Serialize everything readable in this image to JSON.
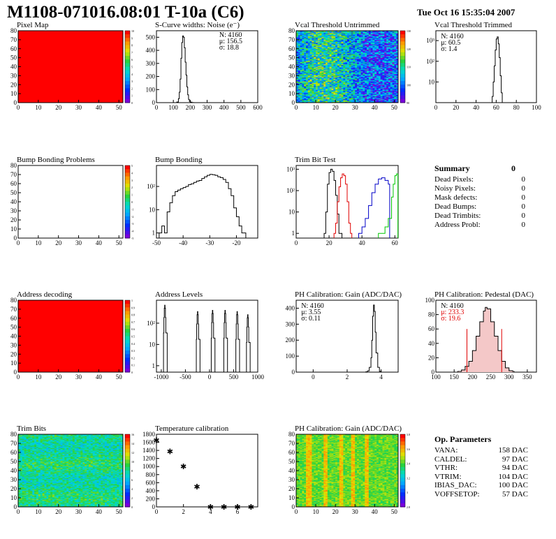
{
  "header": {
    "title": "M1108-071016.08:01 T-10a (C6)",
    "date": "Tue Oct 16 15:35:04 2007"
  },
  "colors": {
    "red_map": "#ff0000",
    "line": "#000000",
    "trim_red": "#e00000",
    "trim_blue": "#0000c8",
    "trim_green": "#00c800",
    "pedestal_fit": "#e00000"
  },
  "panels": {
    "pixel_map": {
      "title": "Pixel Map",
      "zticks": [
        "10",
        "9",
        "8",
        "7",
        "6",
        "5",
        "4",
        "3",
        "2",
        "1",
        "0"
      ]
    },
    "scurve": {
      "title": "S-Curve widths: Noise (e⁻)",
      "stats": [
        "N: 4160",
        "μ: 156.5",
        "σ: 18.8"
      ]
    },
    "vcal_untrimmed": {
      "title": "Vcal Threshold Untrimmed",
      "zticks": [
        "130",
        "120",
        "110",
        "100",
        "90"
      ]
    },
    "vcal_trimmed": {
      "title": "Vcal Threshold Trimmed",
      "stats": [
        "N: 4160",
        "μ: 60.5",
        "σ:  1.4"
      ]
    },
    "bump_problems": {
      "title": "Bump Bonding Problems",
      "zticks": [
        "5",
        "4",
        "3",
        "2",
        "1",
        "0",
        "-1",
        "-2",
        "-3",
        "-4",
        "-5"
      ]
    },
    "bump_bonding": {
      "title": "Bump Bonding"
    },
    "trim_bit_test": {
      "title": "Trim Bit Test"
    },
    "address_decoding": {
      "title": "Address decoding",
      "zticks": [
        "1",
        "0.9",
        "0.8",
        "0.7",
        "0.6",
        "0.5",
        "0.4",
        "0.3",
        "0.2",
        "0.1",
        "0"
      ]
    },
    "address_levels": {
      "title": "Address Levels"
    },
    "ph_gain": {
      "title": "PH Calibration: Gain (ADC/DAC)",
      "stats": [
        "N: 4160",
        "μ: 3.55",
        "σ: 0.11"
      ]
    },
    "ph_pedestal": {
      "title": "PH Calibration: Pedestal (DAC)",
      "stats": [
        "N: 4160",
        "μ: 233.3",
        "σ: 19.6"
      ]
    },
    "trim_bits": {
      "title": "Trim Bits",
      "zticks": [
        "16",
        "14",
        "12",
        "10",
        "8",
        "6",
        "4",
        "2",
        "0"
      ]
    },
    "temperature": {
      "title": "Temperature calibration"
    },
    "ph_gain_map": {
      "title": "PH Calibration: Gain (ADC/DAC)",
      "zticks": [
        "3.8",
        "3.6",
        "3.4",
        "3.2",
        "3",
        "2.8"
      ]
    }
  },
  "summary": {
    "title": "Summary",
    "total": "0",
    "rows": [
      {
        "label": "Dead Pixels:",
        "value": "0"
      },
      {
        "label": "Noisy Pixels:",
        "value": "0"
      },
      {
        "label": "Mask defects:",
        "value": "0"
      },
      {
        "label": "Dead Bumps:",
        "value": "0"
      },
      {
        "label": "Dead Trimbits:",
        "value": "0"
      },
      {
        "label": "Address Probl:",
        "value": "0"
      }
    ]
  },
  "op_parameters": {
    "title": "Op. Parameters",
    "rows": [
      {
        "label": "VANA:",
        "value": "158 DAC"
      },
      {
        "label": "CALDEL:",
        "value": "97 DAC"
      },
      {
        "label": "VTHR:",
        "value": "94 DAC"
      },
      {
        "label": "VTRIM:",
        "value": "104 DAC"
      },
      {
        "label": "IBIAS_DAC:",
        "value": "100 DAC"
      },
      {
        "label": "VOFFSETOP:",
        "value": "57 DAC"
      }
    ]
  },
  "chart_data": [
    {
      "id": "pixel_map",
      "type": "heatmap",
      "title": "Pixel Map",
      "xlim": [
        0,
        52
      ],
      "ylim": [
        0,
        80
      ],
      "xticks": [
        0,
        10,
        20,
        30,
        40,
        50
      ],
      "yticks": [
        0,
        10,
        20,
        30,
        40,
        50,
        60,
        70,
        80
      ],
      "zlim": [
        0,
        10
      ],
      "uniform_value": 10
    },
    {
      "id": "scurve",
      "type": "line",
      "title": "S-Curve widths: Noise (e⁻)",
      "xlim": [
        0,
        600
      ],
      "ylim": [
        0,
        550
      ],
      "xticks": [
        0,
        100,
        200,
        300,
        400,
        500,
        600
      ],
      "yticks": [
        0,
        100,
        200,
        300,
        400,
        500
      ],
      "x": [
        110,
        120,
        130,
        135,
        140,
        145,
        150,
        155,
        160,
        165,
        170,
        175,
        180,
        185,
        190,
        195,
        200,
        210,
        220
      ],
      "y": [
        0,
        5,
        30,
        80,
        180,
        340,
        460,
        510,
        500,
        420,
        310,
        210,
        120,
        60,
        25,
        10,
        4,
        1,
        0
      ]
    },
    {
      "id": "vcal_untrimmed",
      "type": "heatmap",
      "title": "Vcal Threshold Untrimmed",
      "xlim": [
        0,
        52
      ],
      "ylim": [
        0,
        80
      ],
      "xticks": [
        0,
        10,
        20,
        30,
        40,
        50
      ],
      "yticks": [
        0,
        10,
        20,
        30,
        40,
        50,
        60,
        70,
        80
      ],
      "zlim": [
        85,
        135
      ]
    },
    {
      "id": "vcal_trimmed",
      "type": "line",
      "title": "Vcal Threshold Trimmed",
      "yscale": "log",
      "xlim": [
        0,
        100
      ],
      "ylim": [
        1,
        3000
      ],
      "xticks": [
        0,
        20,
        40,
        60,
        80,
        100
      ],
      "yticks": [
        10,
        100,
        1000
      ],
      "yticklabels": [
        "10",
        "10²",
        "10³"
      ],
      "x": [
        55,
        56,
        57,
        58,
        59,
        60,
        61,
        62,
        63,
        64,
        65,
        66
      ],
      "y": [
        1,
        2,
        10,
        60,
        350,
        1200,
        1500,
        700,
        150,
        20,
        3,
        1
      ]
    },
    {
      "id": "bump_problems",
      "type": "heatmap",
      "title": "Bump Bonding Problems",
      "xlim": [
        0,
        52
      ],
      "ylim": [
        0,
        80
      ],
      "xticks": [
        0,
        10,
        20,
        30,
        40,
        50
      ],
      "yticks": [
        0,
        10,
        20,
        30,
        40,
        50,
        60,
        70,
        80
      ],
      "zlim": [
        -5,
        5
      ]
    },
    {
      "id": "bump_bonding",
      "type": "line",
      "title": "Bump Bonding",
      "yscale": "log",
      "xlim": [
        -50,
        -12
      ],
      "ylim": [
        0.6,
        800
      ],
      "xticks": [
        -50,
        -40,
        -30,
        -20
      ],
      "yticks": [
        1,
        10,
        100
      ],
      "yticklabels": [
        "1",
        "10",
        "10²"
      ],
      "x": [
        -49,
        -48,
        -47,
        -46,
        -45,
        -44,
        -43,
        -42,
        -41,
        -40,
        -39,
        -38,
        -37,
        -36,
        -35,
        -34,
        -33,
        -32,
        -31,
        -30,
        -29,
        -28,
        -27,
        -26,
        -25,
        -24,
        -23,
        -22,
        -21,
        -20,
        -19,
        -18,
        -17
      ],
      "y": [
        1,
        2,
        1,
        8,
        20,
        40,
        60,
        70,
        80,
        90,
        100,
        120,
        130,
        150,
        170,
        180,
        220,
        260,
        300,
        330,
        320,
        300,
        260,
        240,
        200,
        150,
        80,
        40,
        12,
        5,
        2,
        1,
        1
      ]
    },
    {
      "id": "trim_bit_test",
      "type": "line",
      "title": "Trim Bit Test",
      "yscale": "log",
      "xlim": [
        0,
        62
      ],
      "ylim": [
        0.6,
        1500
      ],
      "xticks": [
        0,
        20,
        40,
        60
      ],
      "yticks": [
        1,
        10,
        100,
        1000
      ],
      "yticklabels": [
        "1",
        "10",
        "10²",
        "10³"
      ],
      "series": [
        {
          "x": [
            17,
            18,
            19,
            20,
            21,
            22,
            23,
            24,
            25,
            26,
            27
          ],
          "y": [
            1,
            10,
            200,
            700,
            1000,
            800,
            300,
            60,
            8,
            1,
            1
          ]
        },
        {
          "x": [
            23,
            24,
            25,
            26,
            27,
            28,
            29,
            30,
            31,
            32,
            33
          ],
          "y": [
            1,
            3,
            30,
            150,
            400,
            600,
            500,
            200,
            30,
            3,
            1
          ]
        },
        {
          "x": [
            38,
            40,
            42,
            44,
            46,
            48,
            50,
            52,
            54,
            56
          ],
          "y": [
            1,
            2,
            5,
            20,
            80,
            200,
            350,
            400,
            300,
            200
          ]
        },
        {
          "x": [
            50,
            52,
            54,
            56,
            58,
            59,
            60,
            61
          ],
          "y": [
            1,
            1,
            2,
            5,
            50,
            200,
            500,
            600
          ]
        }
      ]
    },
    {
      "id": "address_decoding",
      "type": "heatmap",
      "title": "Address decoding",
      "xlim": [
        0,
        52
      ],
      "ylim": [
        0,
        80
      ],
      "xticks": [
        0,
        10,
        20,
        30,
        40,
        50
      ],
      "yticks": [
        0,
        10,
        20,
        30,
        40,
        50,
        60,
        70,
        80
      ],
      "zlim": [
        0,
        1
      ],
      "uniform_value": 1
    },
    {
      "id": "address_levels",
      "type": "line",
      "title": "Address Levels",
      "yscale": "log",
      "xlim": [
        -1100,
        1000
      ],
      "ylim": [
        0.5,
        1200
      ],
      "xticks": [
        -1000,
        -500,
        0,
        500,
        1000
      ],
      "yticks": [
        1,
        10,
        100
      ],
      "yticklabels": [
        "1",
        "10",
        "10²"
      ],
      "peaks": [
        {
          "center": -930,
          "height": 700
        },
        {
          "center": -250,
          "height": 350
        },
        {
          "center": 60,
          "height": 400
        },
        {
          "center": 320,
          "height": 400
        },
        {
          "center": 570,
          "height": 350
        },
        {
          "center": 790,
          "height": 250
        }
      ]
    },
    {
      "id": "ph_gain",
      "type": "line",
      "title": "PH Calibration: Gain (ADC/DAC)",
      "xlim": [
        -1,
        5
      ],
      "ylim": [
        0,
        450
      ],
      "xticks": [
        0,
        2,
        4
      ],
      "yticks": [
        0,
        100,
        200,
        300,
        400
      ],
      "x": [
        3.0,
        3.1,
        3.2,
        3.3,
        3.4,
        3.45,
        3.5,
        3.55,
        3.6,
        3.65,
        3.7,
        3.8,
        3.9,
        4.0
      ],
      "y": [
        0,
        2,
        8,
        30,
        90,
        200,
        350,
        420,
        380,
        250,
        120,
        30,
        5,
        0
      ]
    },
    {
      "id": "ph_pedestal",
      "type": "line",
      "title": "PH Calibration: Pedestal (DAC)",
      "xlim": [
        100,
        375
      ],
      "ylim": [
        0,
        100
      ],
      "xticks": [
        100,
        150,
        200,
        250,
        300,
        350
      ],
      "yticks": [
        0,
        20,
        40,
        60,
        80,
        100
      ],
      "x": [
        160,
        170,
        180,
        190,
        200,
        210,
        220,
        230,
        235,
        240,
        250,
        260,
        270,
        280,
        290,
        300,
        310
      ],
      "y": [
        1,
        3,
        8,
        15,
        30,
        50,
        70,
        85,
        90,
        88,
        70,
        50,
        30,
        15,
        6,
        2,
        1
      ],
      "fit_range": [
        185,
        280
      ]
    },
    {
      "id": "trim_bits",
      "type": "heatmap",
      "title": "Trim Bits",
      "xlim": [
        0,
        52
      ],
      "ylim": [
        0,
        80
      ],
      "xticks": [
        0,
        10,
        20,
        30,
        40,
        50
      ],
      "yticks": [
        0,
        10,
        20,
        30,
        40,
        50,
        60,
        70,
        80
      ],
      "zlim": [
        0,
        16
      ]
    },
    {
      "id": "temperature",
      "type": "scatter",
      "title": "Temperature calibration",
      "xlim": [
        0,
        7.5
      ],
      "ylim": [
        0,
        1800
      ],
      "xticks": [
        0,
        2,
        4,
        6
      ],
      "yticks": [
        0,
        200,
        400,
        600,
        800,
        1000,
        1200,
        1400,
        1600,
        1800
      ],
      "x": [
        0,
        1,
        2,
        3,
        4,
        5,
        6,
        7
      ],
      "y": [
        1650,
        1380,
        1000,
        500,
        0,
        0,
        0,
        0
      ]
    },
    {
      "id": "ph_gain_map",
      "type": "heatmap",
      "title": "PH Calibration: Gain (ADC/DAC)",
      "xlim": [
        0,
        52
      ],
      "ylim": [
        0,
        80
      ],
      "xticks": [
        0,
        10,
        20,
        30,
        40,
        50
      ],
      "yticks": [
        0,
        10,
        20,
        30,
        40,
        50,
        60,
        70,
        80
      ],
      "zlim": [
        2.7,
        3.9
      ]
    }
  ]
}
